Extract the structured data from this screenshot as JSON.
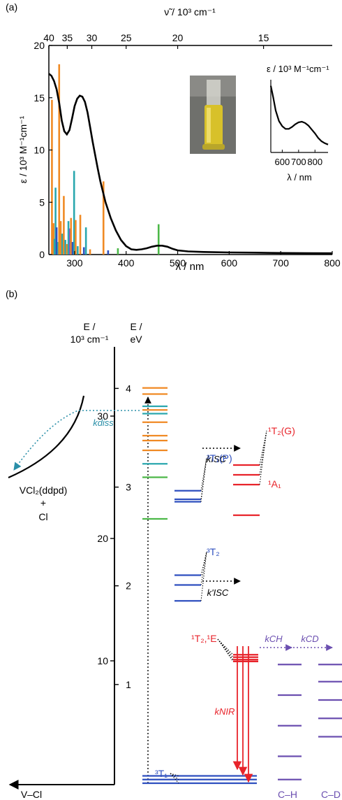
{
  "panel_a": {
    "label": "(a)",
    "top_axis_label": "ν̃ / 10³ cm⁻¹",
    "top_ticks": [
      "40",
      "35",
      "30",
      "25",
      "20",
      "15"
    ],
    "inset": {
      "ylabel": "ε / 10³ M⁻¹cm⁻¹",
      "xlabel": "λ / nm",
      "ticks": [
        "600",
        "700",
        "800"
      ]
    }
  },
  "chart_data": [
    {
      "type": "line",
      "panel": "(a)",
      "xlabel": "λ / nm",
      "ylabel": "ε / 10³ M⁻¹cm⁻¹",
      "xlim": [
        250,
        800
      ],
      "ylim": [
        0,
        20
      ],
      "x_ticks": [
        300,
        400,
        500,
        600,
        700,
        800
      ],
      "y_ticks": [
        0,
        5,
        10,
        15,
        20
      ],
      "absorption_curve": {
        "x": [
          250,
          255,
          260,
          265,
          270,
          275,
          280,
          285,
          290,
          295,
          300,
          305,
          310,
          315,
          320,
          325,
          330,
          335,
          340,
          345,
          350,
          355,
          360,
          370,
          380,
          390,
          400,
          410,
          420,
          430,
          440,
          450,
          460,
          470,
          480,
          490,
          500,
          520,
          550,
          600,
          650,
          700,
          750,
          800
        ],
        "y": [
          17.3,
          17.1,
          16.6,
          15.8,
          14.5,
          12.8,
          11.8,
          11.5,
          11.9,
          13.0,
          14.2,
          14.9,
          15.2,
          15.1,
          14.6,
          13.6,
          12.2,
          10.8,
          9.5,
          8.2,
          7.0,
          6.0,
          5.0,
          3.5,
          2.3,
          1.4,
          0.8,
          0.5,
          0.45,
          0.5,
          0.6,
          0.75,
          0.85,
          0.85,
          0.75,
          0.55,
          0.4,
          0.3,
          0.25,
          0.2,
          0.18,
          0.15,
          0.13,
          0.12
        ]
      },
      "calculated_transitions": [
        {
          "x": 256,
          "y": 14.8,
          "color": "#f08a24"
        },
        {
          "x": 259,
          "y": 3.0,
          "color": "#f08a24"
        },
        {
          "x": 261,
          "y": 1.5,
          "color": "#2aa7ae"
        },
        {
          "x": 263,
          "y": 6.4,
          "color": "#2aa7ae"
        },
        {
          "x": 265,
          "y": 2.6,
          "color": "#2e4fbf"
        },
        {
          "x": 268,
          "y": 1.2,
          "color": "#2aa7ae"
        },
        {
          "x": 270,
          "y": 18.2,
          "color": "#f08a24"
        },
        {
          "x": 273,
          "y": 3.2,
          "color": "#f08a24"
        },
        {
          "x": 276,
          "y": 2.0,
          "color": "#2aa7ae"
        },
        {
          "x": 279,
          "y": 5.6,
          "color": "#f08a24"
        },
        {
          "x": 282,
          "y": 1.4,
          "color": "#2aa7ae"
        },
        {
          "x": 285,
          "y": 1.0,
          "color": "#f08a24"
        },
        {
          "x": 288,
          "y": 3.2,
          "color": "#2aa7ae"
        },
        {
          "x": 291,
          "y": 2.5,
          "color": "#8a4fc7"
        },
        {
          "x": 293,
          "y": 3.5,
          "color": "#f08a24"
        },
        {
          "x": 296,
          "y": 1.2,
          "color": "#2e4fbf"
        },
        {
          "x": 299,
          "y": 8.0,
          "color": "#2aa7ae"
        },
        {
          "x": 302,
          "y": 3.3,
          "color": "#f08a24"
        },
        {
          "x": 306,
          "y": 0.8,
          "color": "#2aa7ae"
        },
        {
          "x": 311,
          "y": 3.8,
          "color": "#f08a24"
        },
        {
          "x": 318,
          "y": 0.7,
          "color": "#2e4fbf"
        },
        {
          "x": 322,
          "y": 2.6,
          "color": "#2aa7ae"
        },
        {
          "x": 330,
          "y": 0.5,
          "color": "#f08a24"
        },
        {
          "x": 356,
          "y": 7.0,
          "color": "#f08a24"
        },
        {
          "x": 365,
          "y": 0.4,
          "color": "#2e4fbf"
        },
        {
          "x": 384,
          "y": 0.6,
          "color": "#4cb848"
        },
        {
          "x": 463,
          "y": 2.9,
          "color": "#4cb848"
        }
      ]
    },
    {
      "type": "line",
      "panel": "(a) inset",
      "xlabel": "λ / nm",
      "ylabel": "ε / 10³ M⁻¹cm⁻¹",
      "xlim": [
        530,
        880
      ],
      "ticks": [
        600,
        700,
        800
      ],
      "x": [
        530,
        545,
        560,
        580,
        600,
        620,
        640,
        660,
        680,
        700,
        720,
        740,
        760,
        780,
        800,
        820,
        840,
        860,
        880
      ],
      "y": [
        1.0,
        0.82,
        0.62,
        0.46,
        0.38,
        0.34,
        0.34,
        0.37,
        0.41,
        0.44,
        0.45,
        0.43,
        0.39,
        0.33,
        0.27,
        0.2,
        0.15,
        0.12,
        0.1
      ]
    },
    {
      "type": "energy-level diagram",
      "panel": "(b)",
      "left_axis": {
        "label": "E / 10³ cm⁻¹",
        "ticks": [
          10,
          20,
          30
        ]
      },
      "right_axis": {
        "label": "E / eV",
        "ticks": [
          1,
          2,
          3,
          4
        ]
      },
      "ylim_cm": [
        0,
        32.3
      ],
      "absorption_levels": [
        {
          "cm": 32.3,
          "color": "#f08a24"
        },
        {
          "cm": 31.8,
          "color": "#f08a24"
        },
        {
          "cm": 30.8,
          "color": "#2aa7ae"
        },
        {
          "cm": 30.5,
          "color": "#f08a24"
        },
        {
          "cm": 30.2,
          "color": "#2aa7ae"
        },
        {
          "cm": 29.5,
          "color": "#f08a24"
        },
        {
          "cm": 28.4,
          "color": "#f08a24"
        },
        {
          "cm": 28.0,
          "color": "#f08a24"
        },
        {
          "cm": 27.2,
          "color": "#f08a24"
        },
        {
          "cm": 26.1,
          "color": "#2aa7ae"
        },
        {
          "cm": 25.0,
          "color": "#4cb848"
        },
        {
          "cm": 21.6,
          "color": "#4cb848"
        }
      ],
      "states": [
        {
          "label": "³T₁(P)",
          "levels_cm": [
            23.9,
            23.2,
            23.0
          ],
          "color": "#2e4fbf"
        },
        {
          "label": "¹T₂(G)",
          "levels_cm": [
            26.0,
            25.2,
            24.4
          ],
          "color": "#e8232a"
        },
        {
          "label": "¹A₁",
          "levels_cm": [
            21.9
          ],
          "color": "#e8232a"
        },
        {
          "label": "³T₂",
          "levels_cm": [
            17.0,
            16.2,
            14.9
          ],
          "color": "#2e4fbf"
        },
        {
          "label": "¹T₂,¹E",
          "levels_cm": [
            10.5,
            10.3,
            10.1,
            9.95
          ],
          "color": "#e8232a"
        },
        {
          "label": "³T₁",
          "levels_cm": [
            0.6,
            0.3,
            0.0
          ],
          "color": "#2e4fbf"
        }
      ],
      "vibrational_ladders": [
        {
          "label": "C–H",
          "levels_cm": [
            9.7,
            7.2,
            4.7,
            2.2,
            0.3
          ],
          "color": "#6b4fb0"
        },
        {
          "label": "C–D",
          "levels_cm": [
            9.7,
            8.3,
            6.8,
            5.3,
            3.8
          ],
          "color": "#6b4fb0"
        }
      ],
      "rates": [
        "kdiss",
        "kISC",
        "k'ISC",
        "kNIR",
        "kCH",
        "kCD"
      ]
    }
  ],
  "panel_b": {
    "label": "(b)",
    "left_axis_label_1": "E /",
    "left_axis_label_2": "10³ cm⁻¹",
    "right_axis_label_1": "E /",
    "right_axis_label_2": "eV",
    "left_ticks": [
      "10",
      "20",
      "30"
    ],
    "right_ticks": [
      "1",
      "2",
      "3",
      "4"
    ],
    "dissociation": {
      "product_line1": "VCl₂(ddpd)",
      "product_line2": "+",
      "product_line3": "Cl",
      "coordinate": "V–Cl",
      "rate": "kdiss"
    },
    "rate_labels": {
      "kisc": "kISC",
      "kisc_prime": "k'ISC",
      "knir": "kNIR",
      "kch": "kCH",
      "kcd": "kCD"
    },
    "state_labels": {
      "t1p": "³T₁(P)",
      "t2g": "¹T₂(G)",
      "a1": "¹A₁",
      "t2": "³T₂",
      "t2e": "¹T₂,¹E",
      "t1": "³T₁"
    },
    "ladder_labels": {
      "ch": "C–H",
      "cd": "C–D"
    }
  }
}
